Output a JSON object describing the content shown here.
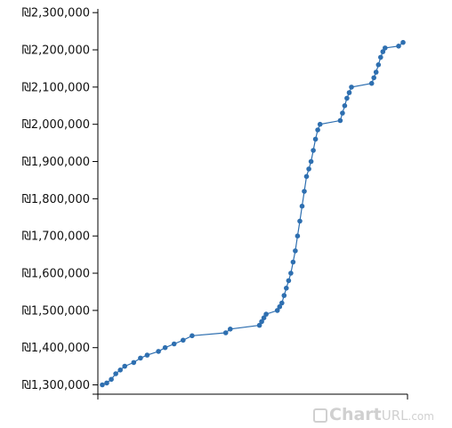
{
  "chart_data": {
    "type": "line",
    "title": "",
    "xlabel": "",
    "ylabel": "",
    "ylim": [
      1275000,
      2310000
    ],
    "yticks": [
      {
        "value": 1300000,
        "label": "₪1,300,000"
      },
      {
        "value": 1400000,
        "label": "₪1,400,000"
      },
      {
        "value": 1500000,
        "label": "₪1,500,000"
      },
      {
        "value": 1600000,
        "label": "₪1,600,000"
      },
      {
        "value": 1700000,
        "label": "₪1,700,000"
      },
      {
        "value": 1800000,
        "label": "₪1,800,000"
      },
      {
        "value": 1900000,
        "label": "₪1,900,000"
      },
      {
        "value": 2000000,
        "label": "₪2,000,000"
      },
      {
        "value": 2100000,
        "label": "₪2,100,000"
      },
      {
        "value": 2200000,
        "label": "₪2,200,000"
      },
      {
        "value": 2300000,
        "label": "₪2,300,000"
      }
    ],
    "x_tick_labels": [],
    "grid": false,
    "color": "#2e6fb0",
    "series": [
      {
        "points": [
          [
            0,
            1300000
          ],
          [
            2,
            1305000
          ],
          [
            4,
            1315000
          ],
          [
            6,
            1330000
          ],
          [
            8,
            1340000
          ],
          [
            10,
            1350000
          ],
          [
            14,
            1360000
          ],
          [
            17,
            1372000
          ],
          [
            20,
            1380000
          ],
          [
            25,
            1390000
          ],
          [
            28,
            1400000
          ],
          [
            32,
            1410000
          ],
          [
            36,
            1420000
          ],
          [
            40,
            1432000
          ],
          [
            55,
            1440000
          ],
          [
            57,
            1450000
          ],
          [
            70,
            1460000
          ],
          [
            71,
            1470000
          ],
          [
            72,
            1480000
          ],
          [
            73,
            1490000
          ],
          [
            78,
            1500000
          ],
          [
            79,
            1510000
          ],
          [
            80,
            1520000
          ],
          [
            81,
            1540000
          ],
          [
            82,
            1560000
          ],
          [
            83,
            1580000
          ],
          [
            84,
            1600000
          ],
          [
            85,
            1630000
          ],
          [
            86,
            1660000
          ],
          [
            87,
            1700000
          ],
          [
            88,
            1740000
          ],
          [
            89,
            1780000
          ],
          [
            90,
            1820000
          ],
          [
            91,
            1860000
          ],
          [
            92,
            1880000
          ],
          [
            93,
            1900000
          ],
          [
            94,
            1930000
          ],
          [
            95,
            1960000
          ],
          [
            96,
            1985000
          ],
          [
            97,
            2000000
          ],
          [
            106,
            2010000
          ],
          [
            107,
            2030000
          ],
          [
            108,
            2050000
          ],
          [
            109,
            2070000
          ],
          [
            110,
            2085000
          ],
          [
            111,
            2100000
          ],
          [
            120,
            2110000
          ],
          [
            121,
            2125000
          ],
          [
            122,
            2140000
          ],
          [
            123,
            2160000
          ],
          [
            124,
            2180000
          ],
          [
            125,
            2195000
          ],
          [
            126,
            2205000
          ],
          [
            132,
            2210000
          ],
          [
            134,
            2220000
          ]
        ]
      }
    ]
  },
  "watermark": {
    "brand": "Chart",
    "url": "URL",
    "suffix": ".com"
  }
}
